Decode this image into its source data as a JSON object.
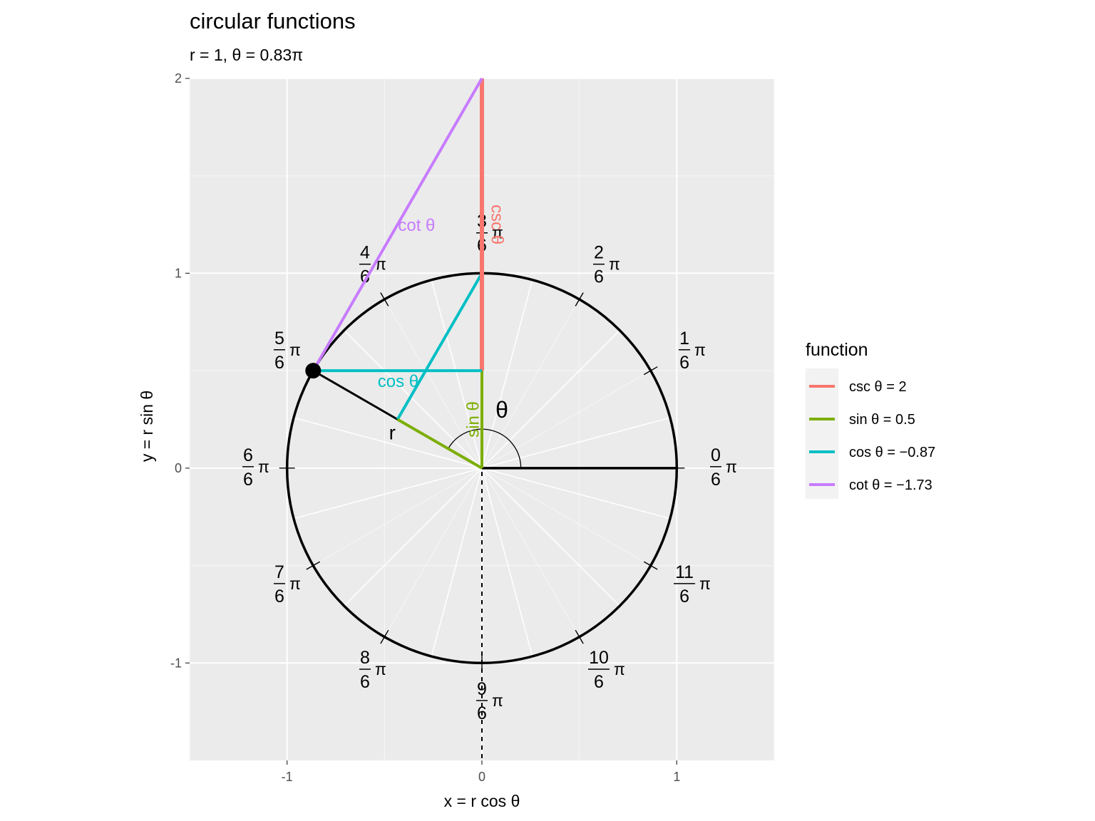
{
  "title": "circular functions",
  "subtitle": "r = 1, θ = 0.83π",
  "chart_data": {
    "type": "line",
    "xlabel": "x = r cos θ",
    "ylabel": "y = r sin θ",
    "xlim": [
      -1.5,
      1.5
    ],
    "ylim": [
      -1.5,
      2.0
    ],
    "x_ticks": [
      -1,
      0,
      1
    ],
    "y_ticks": [
      -1,
      0,
      1,
      2
    ],
    "x_tick_labels": [
      "-1",
      "0",
      "1"
    ],
    "y_tick_labels": [
      "-1",
      "0",
      "1",
      "2"
    ],
    "grid": true,
    "legend_position": "right",
    "r": 1,
    "theta_over_pi": 0.8333,
    "unit_circle": true,
    "angle_ticks": [
      {
        "num": "0",
        "den": "6",
        "pi": "π",
        "k": 0
      },
      {
        "num": "1",
        "den": "6",
        "pi": "π",
        "k": 1
      },
      {
        "num": "2",
        "den": "6",
        "pi": "π",
        "k": 2
      },
      {
        "num": "3",
        "den": "6",
        "pi": "π",
        "k": 3
      },
      {
        "num": "4",
        "den": "6",
        "pi": "π",
        "k": 4
      },
      {
        "num": "5",
        "den": "6",
        "pi": "π",
        "k": 5
      },
      {
        "num": "6",
        "den": "6",
        "pi": "π",
        "k": 6
      },
      {
        "num": "7",
        "den": "6",
        "pi": "π",
        "k": 7
      },
      {
        "num": "8",
        "den": "6",
        "pi": "π",
        "k": 8
      },
      {
        "num": "9",
        "den": "6",
        "pi": "π",
        "k": 9
      },
      {
        "num": "10",
        "den": "6",
        "pi": "π",
        "k": 10
      },
      {
        "num": "11",
        "den": "6",
        "pi": "π",
        "k": 11
      }
    ],
    "radius_label": "r",
    "theta_label": "θ",
    "series": [
      {
        "name": "csc θ = 2",
        "label": "csc θ",
        "color": "#F8766D",
        "value": 2,
        "points": [
          [
            0,
            0.5
          ],
          [
            0,
            2
          ]
        ]
      },
      {
        "name": "sin θ = 0.5",
        "label": "sin θ",
        "color": "#7CAE00",
        "value": 0.5,
        "points": [
          [
            0,
            0
          ],
          [
            0,
            0.5
          ]
        ]
      },
      {
        "name": "cos θ = −0.87",
        "label": "cos θ",
        "color": "#00BFC4",
        "value": -0.87,
        "points": [
          [
            -0.866,
            0.5
          ],
          [
            0,
            0.5
          ]
        ]
      },
      {
        "name": "cot θ = −1.73",
        "label": "cot θ",
        "color": "#C77CFF",
        "value": -1.73,
        "points": [
          [
            -0.866,
            0.5
          ],
          [
            0,
            2
          ]
        ]
      }
    ],
    "legend_title": "function"
  }
}
